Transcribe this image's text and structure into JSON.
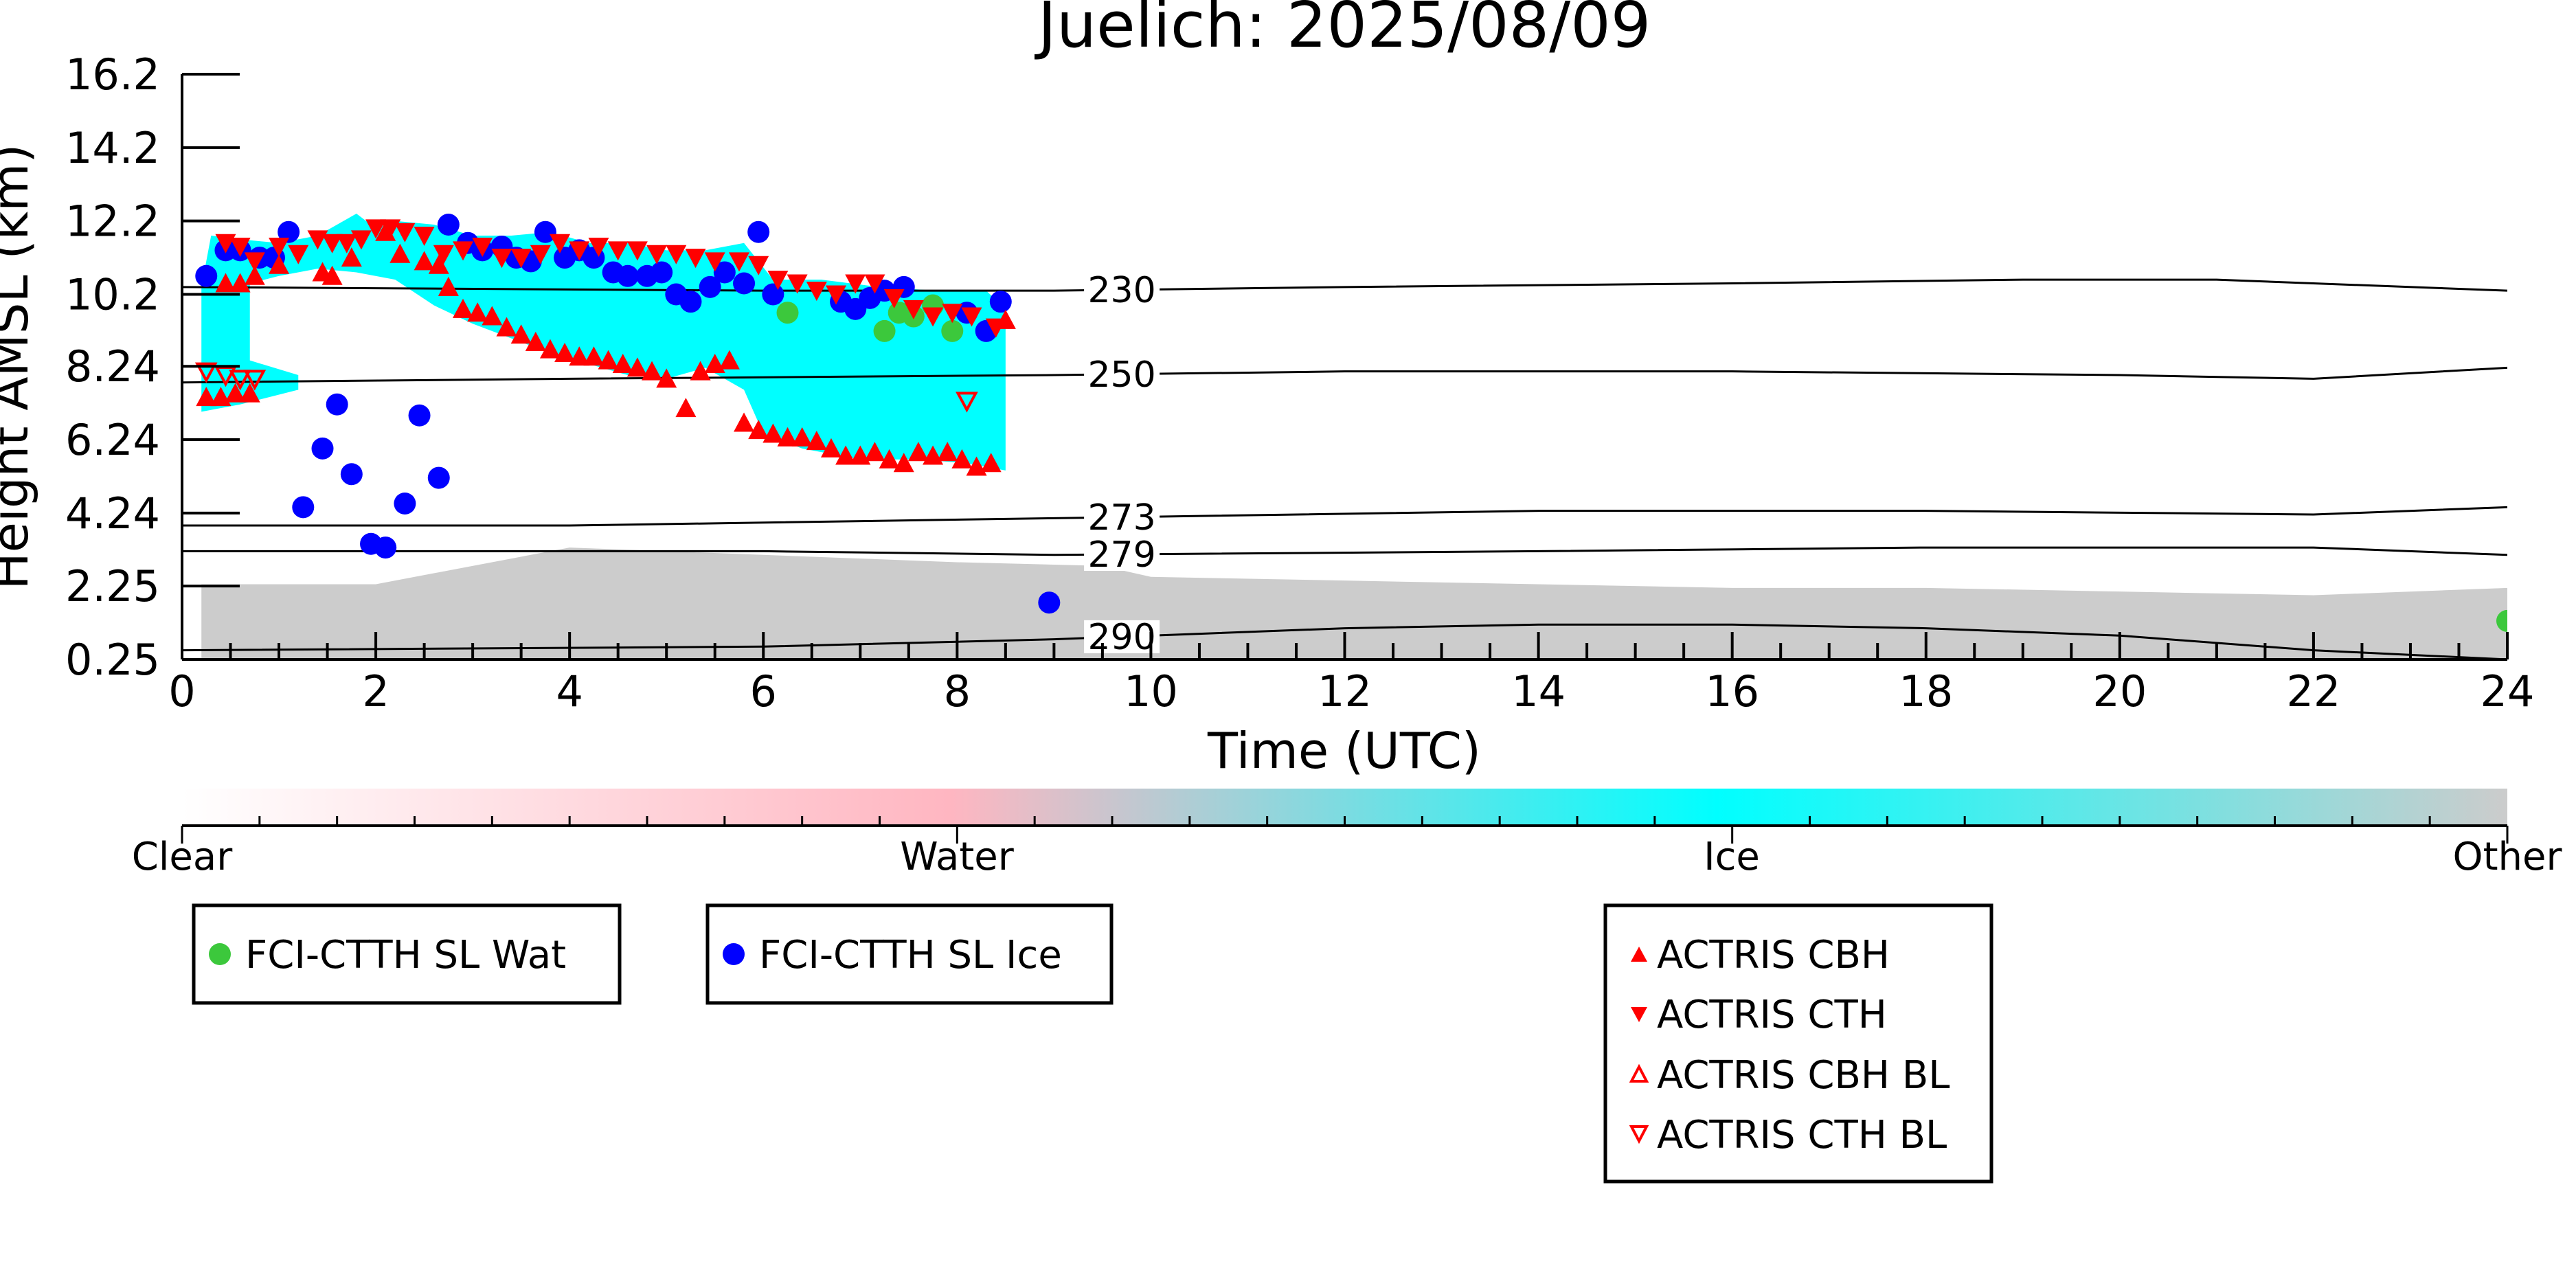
{
  "chart_data": {
    "type": "scatter",
    "title": "Juelich: 2025/08/09",
    "xlabel": "Time (UTC)",
    "ylabel": "Height AMSL (km)",
    "xlim": [
      0,
      24
    ],
    "ylim": [
      0.25,
      16.2
    ],
    "x_ticks": [
      0,
      2,
      4,
      6,
      8,
      10,
      12,
      14,
      16,
      18,
      20,
      22,
      24
    ],
    "y_ticks": [
      0.25,
      2.25,
      4.24,
      6.24,
      8.24,
      10.2,
      12.2,
      14.2,
      16.2
    ],
    "y_tick_labels": [
      "0.25",
      "2.25",
      "4.24",
      "6.24",
      "8.24",
      "10.2",
      "12.2",
      "14.2",
      "16.2"
    ],
    "grid": false,
    "colorbar": {
      "labels": [
        "Clear",
        "Water",
        "Ice",
        "Other"
      ],
      "colors": [
        "#ffffff",
        "#ffb6c1",
        "#00ffff",
        "#cccccc"
      ]
    },
    "contours": [
      {
        "label": "230",
        "label_x": 9.7,
        "x": [
          0,
          6,
          9,
          12,
          16,
          19,
          21,
          24
        ],
        "y": [
          10.4,
          10.3,
          10.3,
          10.4,
          10.5,
          10.6,
          10.6,
          10.3
        ]
      },
      {
        "label": "250",
        "label_x": 9.7,
        "x": [
          0,
          4,
          9,
          12,
          16,
          20,
          22,
          24
        ],
        "y": [
          7.8,
          7.9,
          8.0,
          8.1,
          8.1,
          8.0,
          7.9,
          8.2
        ]
      },
      {
        "label": "273",
        "label_x": 9.7,
        "x": [
          0,
          4,
          9,
          14,
          18,
          22,
          24
        ],
        "y": [
          3.9,
          3.9,
          4.1,
          4.3,
          4.3,
          4.2,
          4.4
        ]
      },
      {
        "label": "279",
        "label_x": 9.7,
        "x": [
          0,
          6,
          9,
          14,
          18,
          22,
          24
        ],
        "y": [
          3.2,
          3.2,
          3.1,
          3.2,
          3.3,
          3.3,
          3.1
        ]
      },
      {
        "label": "290",
        "label_x": 9.7,
        "x": [
          0,
          6,
          9,
          12,
          14,
          16,
          18,
          20,
          22,
          24
        ],
        "y": [
          0.5,
          0.6,
          0.8,
          1.1,
          1.2,
          1.2,
          1.1,
          0.9,
          0.5,
          0.25
        ]
      }
    ],
    "series": [
      {
        "name": "FCI-CTTH SL Wat",
        "marker": "circle",
        "color": "#3cc83c",
        "x": [
          6.25,
          7.25,
          7.4,
          7.55,
          7.75,
          7.95,
          24.0
        ],
        "y": [
          9.7,
          9.2,
          9.7,
          9.6,
          9.9,
          9.2,
          1.3
        ]
      },
      {
        "name": "FCI-CTTH SL Ice",
        "marker": "circle",
        "color": "#0000ff",
        "x": [
          0.25,
          0.45,
          0.6,
          0.8,
          0.95,
          1.1,
          1.25,
          1.45,
          1.6,
          1.75,
          1.95,
          2.1,
          2.3,
          2.45,
          2.65,
          2.75,
          2.95,
          3.1,
          3.3,
          3.45,
          3.6,
          3.75,
          3.95,
          4.1,
          4.25,
          4.45,
          4.6,
          4.8,
          4.95,
          5.1,
          5.25,
          5.45,
          5.6,
          5.8,
          5.95,
          6.1,
          6.8,
          6.95,
          7.1,
          7.25,
          7.45,
          8.1,
          8.3,
          8.45,
          8.95
        ],
        "y": [
          10.7,
          11.4,
          11.4,
          11.2,
          11.2,
          11.9,
          4.4,
          6.0,
          7.2,
          5.3,
          3.4,
          3.3,
          4.5,
          6.9,
          5.2,
          12.1,
          11.6,
          11.4,
          11.5,
          11.2,
          11.1,
          11.9,
          11.2,
          11.4,
          11.2,
          10.8,
          10.7,
          10.7,
          10.8,
          10.2,
          10.0,
          10.4,
          10.8,
          10.5,
          11.9,
          10.2,
          10.0,
          9.8,
          10.1,
          10.3,
          10.4,
          9.7,
          9.2,
          10.0,
          1.8
        ]
      },
      {
        "name": "ACTRIS CBH",
        "marker": "triangle-up",
        "color": "#ff0000",
        "x": [
          0.25,
          0.4,
          0.55,
          0.7,
          0.45,
          0.6,
          0.75,
          1.0,
          1.45,
          1.55,
          1.75,
          2.1,
          2.25,
          2.5,
          2.65,
          2.75,
          2.9,
          3.05,
          3.2,
          3.35,
          3.5,
          3.65,
          3.8,
          3.95,
          4.1,
          4.25,
          4.4,
          4.55,
          4.7,
          4.85,
          5.0,
          5.2,
          5.35,
          5.5,
          5.65,
          5.8,
          5.95,
          6.1,
          6.25,
          6.4,
          6.55,
          6.7,
          6.85,
          7.0,
          7.15,
          7.3,
          7.45,
          7.6,
          7.75,
          7.9,
          8.05,
          8.2,
          8.35,
          8.5
        ],
        "y": [
          7.4,
          7.4,
          7.5,
          7.5,
          10.5,
          10.5,
          10.7,
          11.0,
          10.8,
          10.7,
          11.2,
          11.9,
          11.3,
          11.1,
          11.0,
          10.4,
          9.8,
          9.7,
          9.6,
          9.3,
          9.1,
          8.9,
          8.7,
          8.6,
          8.5,
          8.5,
          8.4,
          8.3,
          8.2,
          8.1,
          7.9,
          7.1,
          8.1,
          8.3,
          8.4,
          6.7,
          6.5,
          6.4,
          6.3,
          6.3,
          6.2,
          6.0,
          5.8,
          5.8,
          5.9,
          5.7,
          5.6,
          5.9,
          5.8,
          5.9,
          5.7,
          5.5,
          5.6,
          9.5
        ]
      },
      {
        "name": "ACTRIS CTH",
        "marker": "triangle-down",
        "color": "#ff0000",
        "x": [
          0.45,
          0.6,
          0.75,
          1.0,
          1.2,
          1.4,
          1.55,
          1.7,
          1.85,
          2.0,
          2.15,
          2.3,
          2.5,
          2.7,
          2.9,
          3.1,
          3.3,
          3.5,
          3.7,
          3.9,
          4.1,
          4.3,
          4.5,
          4.7,
          4.9,
          5.1,
          5.3,
          5.5,
          5.75,
          5.95,
          6.15,
          6.35,
          6.55,
          6.75,
          6.95,
          7.15,
          7.35,
          7.55,
          7.75,
          7.95,
          8.15,
          8.4
        ],
        "y": [
          11.6,
          11.5,
          11.1,
          11.5,
          11.3,
          11.7,
          11.6,
          11.6,
          11.7,
          12.0,
          12.0,
          11.9,
          11.8,
          11.3,
          11.4,
          11.5,
          11.2,
          11.2,
          11.3,
          11.6,
          11.4,
          11.5,
          11.4,
          11.4,
          11.3,
          11.3,
          11.2,
          11.1,
          11.1,
          11.0,
          10.6,
          10.5,
          10.3,
          10.2,
          10.5,
          10.5,
          10.1,
          9.8,
          9.6,
          9.7,
          9.6,
          9.3
        ]
      },
      {
        "name": "ACTRIS CBH BL",
        "marker": "triangle-up-open",
        "color": "#ff0000",
        "x": [],
        "y": []
      },
      {
        "name": "ACTRIS CTH BL",
        "marker": "triangle-down-open",
        "color": "#ff0000",
        "x": [
          0.25,
          0.45,
          0.6,
          0.75,
          8.1
        ],
        "y": [
          8.1,
          8.0,
          7.9,
          7.9,
          7.3
        ]
      }
    ],
    "background_fields": [
      {
        "class": "Ice",
        "color": "#00ffff",
        "x": [
          0.2,
          0.3,
          0.6,
          1.0,
          1.4,
          1.8,
          2.0,
          2.2,
          2.6,
          3.0,
          3.4,
          3.8,
          4.2,
          4.6,
          5.0,
          5.4,
          5.8,
          6.1,
          6.6,
          7.2,
          7.8,
          8.3,
          8.5,
          8.5,
          8.1,
          7.6,
          7.0,
          6.4,
          6.0,
          5.8,
          5.4,
          5.0,
          4.6,
          4.2,
          3.8,
          3.4,
          3.0,
          2.6,
          2.2,
          1.8,
          1.4,
          1.0,
          0.7,
          0.7,
          1.2,
          1.2,
          0.6,
          0.2
        ],
        "y": [
          10.4,
          11.8,
          11.7,
          11.6,
          11.8,
          12.4,
          12.0,
          12.2,
          12.1,
          11.8,
          11.8,
          11.9,
          11.6,
          11.6,
          11.4,
          11.4,
          11.6,
          10.6,
          10.6,
          10.4,
          10.3,
          10.3,
          9.8,
          5.4,
          5.6,
          5.7,
          5.7,
          6.0,
          6.4,
          7.6,
          8.2,
          7.9,
          8.0,
          8.3,
          8.6,
          9.0,
          9.4,
          9.9,
          10.6,
          10.8,
          10.9,
          10.7,
          10.5,
          8.4,
          8.0,
          7.6,
          7.2,
          7.0
        ]
      },
      {
        "class": "Other",
        "color": "#cccccc",
        "x": [
          0.2,
          2.0,
          4.0,
          6.0,
          7.0,
          8.0,
          9.5,
          10.0,
          12.0,
          14.0,
          16.0,
          18.0,
          20.0,
          22.0,
          24.0,
          24.0,
          0.2
        ],
        "y": [
          2.3,
          2.3,
          3.3,
          3.1,
          3.0,
          2.9,
          2.8,
          2.5,
          2.4,
          2.3,
          2.2,
          2.2,
          2.1,
          2.0,
          2.2,
          0.25,
          0.25
        ]
      }
    ]
  },
  "colorbar_labels": {
    "clear": "Clear",
    "water": "Water",
    "ice": "Ice",
    "other": "Other"
  },
  "legends": {
    "fci_wat": "FCI-CTTH SL Wat",
    "fci_ice": "FCI-CTTH SL Ice",
    "cbh": "ACTRIS CBH",
    "cth": "ACTRIS CTH",
    "cbh_bl": "ACTRIS CBH BL",
    "cth_bl": "ACTRIS CTH BL"
  }
}
